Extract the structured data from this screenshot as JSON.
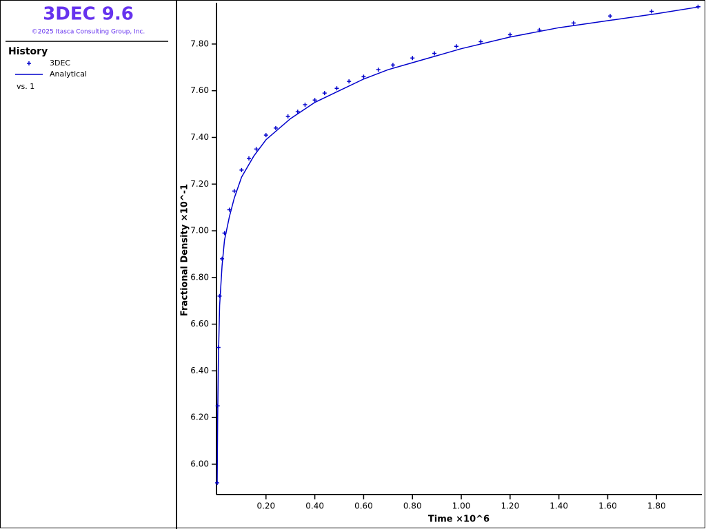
{
  "app": {
    "title": "3DEC 9.6",
    "copyright": "©2025 Itasca Consulting Group, Inc."
  },
  "legend": {
    "title": "History",
    "note": "vs. 1"
  },
  "chart_data": {
    "type": "line",
    "xlabel": "Time ×10^6",
    "ylabel": "Fractional Density ×10^-1",
    "xlim": [
      0,
      1.98
    ],
    "ylim": [
      5.87,
      7.965
    ],
    "xticks": [
      {
        "value": 0.2,
        "label": "0.20"
      },
      {
        "value": 0.4,
        "label": "0.40"
      },
      {
        "value": 0.6,
        "label": "0.60"
      },
      {
        "value": 0.8,
        "label": "0.80"
      },
      {
        "value": 1.0,
        "label": "1.00"
      },
      {
        "value": 1.2,
        "label": "1.20"
      },
      {
        "value": 1.4,
        "label": "1.40"
      },
      {
        "value": 1.6,
        "label": "1.60"
      },
      {
        "value": 1.8,
        "label": "1.80"
      }
    ],
    "yticks": [
      {
        "value": 6.0,
        "label": "6.00"
      },
      {
        "value": 6.2,
        "label": "6.20"
      },
      {
        "value": 6.4,
        "label": "6.40"
      },
      {
        "value": 6.6,
        "label": "6.60"
      },
      {
        "value": 6.8,
        "label": "6.80"
      },
      {
        "value": 7.0,
        "label": "7.00"
      },
      {
        "value": 7.2,
        "label": "7.20"
      },
      {
        "value": 7.4,
        "label": "7.40"
      },
      {
        "value": 7.6,
        "label": "7.60"
      },
      {
        "value": 7.8,
        "label": "7.80"
      }
    ],
    "series": [
      {
        "name": "3DEC",
        "color": "#0000cc",
        "marker": "+",
        "x": [
          0,
          0.002,
          0.005,
          0.01,
          0.02,
          0.03,
          0.05,
          0.07,
          0.1,
          0.13,
          0.16,
          0.2,
          0.24,
          0.29,
          0.33,
          0.36,
          0.4,
          0.44,
          0.49,
          0.54,
          0.6,
          0.66,
          0.72,
          0.8,
          0.89,
          0.98,
          1.08,
          1.2,
          1.32,
          1.46,
          1.61,
          1.78,
          1.97
        ],
        "values": [
          5.92,
          6.25,
          6.5,
          6.72,
          6.88,
          6.99,
          7.09,
          7.17,
          7.26,
          7.31,
          7.35,
          7.41,
          7.44,
          7.49,
          7.51,
          7.54,
          7.56,
          7.59,
          7.61,
          7.64,
          7.66,
          7.69,
          7.71,
          7.74,
          7.76,
          7.79,
          7.81,
          7.84,
          7.86,
          7.89,
          7.92,
          7.94,
          7.96
        ]
      },
      {
        "name": "Analytical",
        "color": "#0000cc",
        "marker": "line",
        "x": [
          0,
          0.002,
          0.005,
          0.01,
          0.02,
          0.03,
          0.05,
          0.07,
          0.1,
          0.15,
          0.2,
          0.3,
          0.4,
          0.5,
          0.6,
          0.7,
          0.8,
          1.0,
          1.2,
          1.4,
          1.6,
          1.8,
          1.98
        ],
        "values": [
          5.92,
          6.2,
          6.45,
          6.68,
          6.85,
          6.96,
          7.06,
          7.14,
          7.23,
          7.32,
          7.39,
          7.48,
          7.55,
          7.6,
          7.65,
          7.69,
          7.72,
          7.78,
          7.83,
          7.87,
          7.9,
          7.93,
          7.96
        ]
      }
    ]
  }
}
